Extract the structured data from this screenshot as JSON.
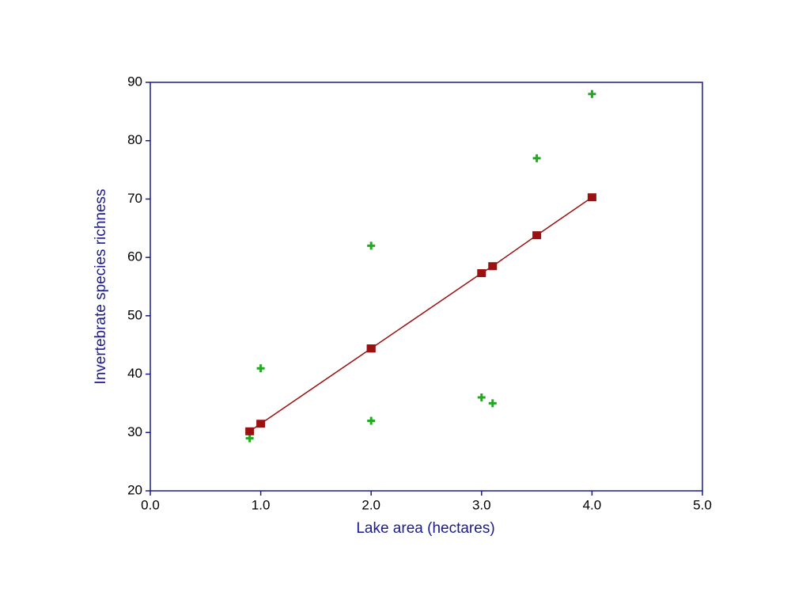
{
  "chart_data": {
    "type": "scatter",
    "x_label": "Lake area (hectares)",
    "y_label": "Invertebrate species richness",
    "x": [
      0.9,
      1.0,
      2.0,
      2.0,
      3.0,
      3.1,
      3.5,
      4.0
    ],
    "series": [
      {
        "color": "#22a822",
        "marker": "plus",
        "values": [
          29,
          41,
          62,
          32,
          36,
          35,
          77,
          88
        ]
      },
      {
        "color": "#9b1010",
        "marker": "square",
        "line": true,
        "values": [
          30.2,
          31.5,
          44.4,
          44.4,
          57.3,
          58.5,
          63.8,
          70.3
        ]
      }
    ],
    "xlim": [
      0,
      5
    ],
    "xticks": [
      {
        "value": 0,
        "label": "0.0"
      },
      {
        "value": 1,
        "label": "1.0"
      },
      {
        "value": 2,
        "label": "2.0"
      },
      {
        "value": 3,
        "label": "3.0"
      },
      {
        "value": 4,
        "label": "4.0"
      },
      {
        "value": 5,
        "label": "5.0"
      }
    ],
    "ylim": [
      20,
      90
    ],
    "yticks": [
      20,
      30,
      40,
      50,
      60,
      70,
      80,
      90
    ],
    "axis_color": "#1a1a8c"
  }
}
